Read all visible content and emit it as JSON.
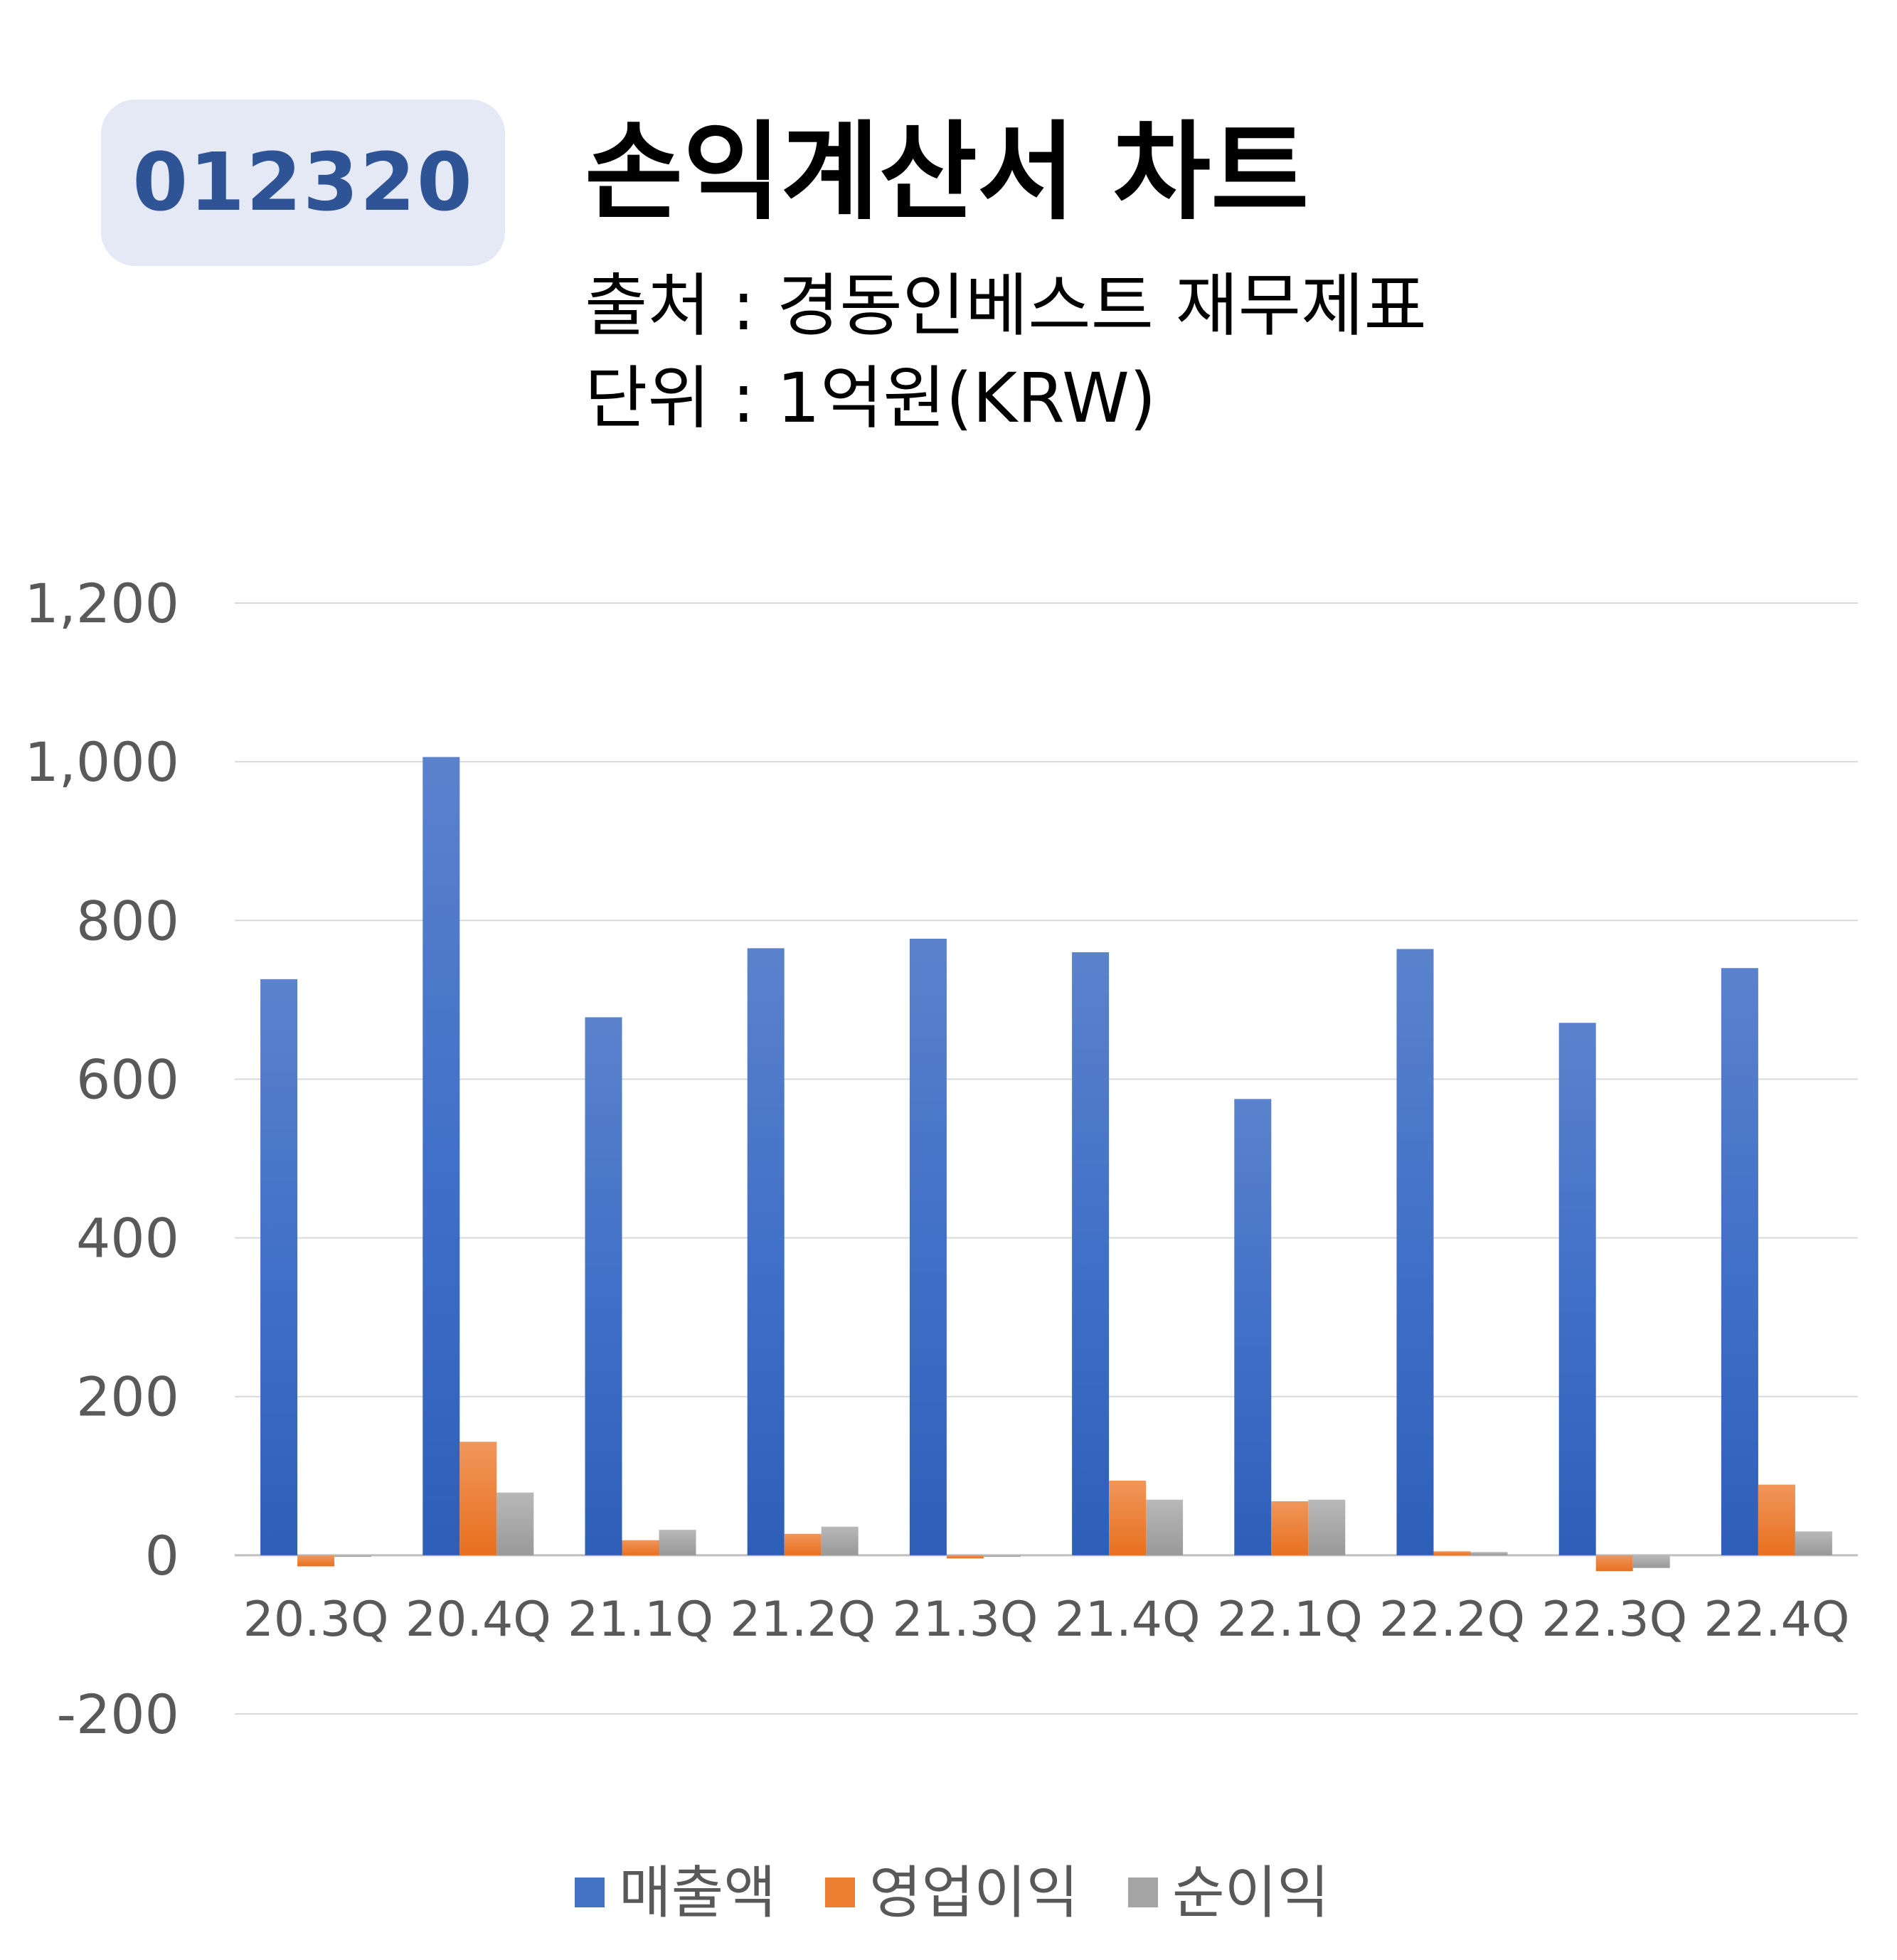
{
  "header": {
    "code": "012320",
    "title": "손익계산서 차트",
    "source": "출처 : 경동인베스트 재무제표",
    "unit": "단위 : 1억원(KRW)"
  },
  "colors": {
    "revenue": "#4472c4",
    "operating_profit": "#ed7d31",
    "net_profit": "#a5a5a5",
    "badge_bg": "#e4e9f5",
    "badge_text": "#2f5496"
  },
  "chart_data": {
    "type": "bar",
    "categories": [
      "20.3Q",
      "20.4Q",
      "21.1Q",
      "21.2Q",
      "21.3Q",
      "21.4Q",
      "22.1Q",
      "22.2Q",
      "22.3Q",
      "22.4Q"
    ],
    "series": [
      {
        "name": "매출액",
        "values": [
          726,
          1006,
          678,
          765,
          777,
          760,
          575,
          764,
          671,
          740
        ]
      },
      {
        "name": "영업이익",
        "values": [
          -14,
          143,
          19,
          27,
          -4,
          94,
          68,
          5,
          -20,
          89
        ]
      },
      {
        "name": "순이익",
        "values": [
          -2,
          79,
          32,
          36,
          -2,
          70,
          70,
          4,
          -16,
          30
        ]
      }
    ],
    "ylim": [
      -200,
      1200
    ],
    "yticks": [
      -200,
      0,
      200,
      400,
      600,
      800,
      1000,
      1200
    ],
    "ytick_labels": [
      "-200",
      "0",
      "200",
      "400",
      "600",
      "800",
      "1,000",
      "1,200"
    ],
    "grid": true,
    "legend_position": "bottom"
  }
}
